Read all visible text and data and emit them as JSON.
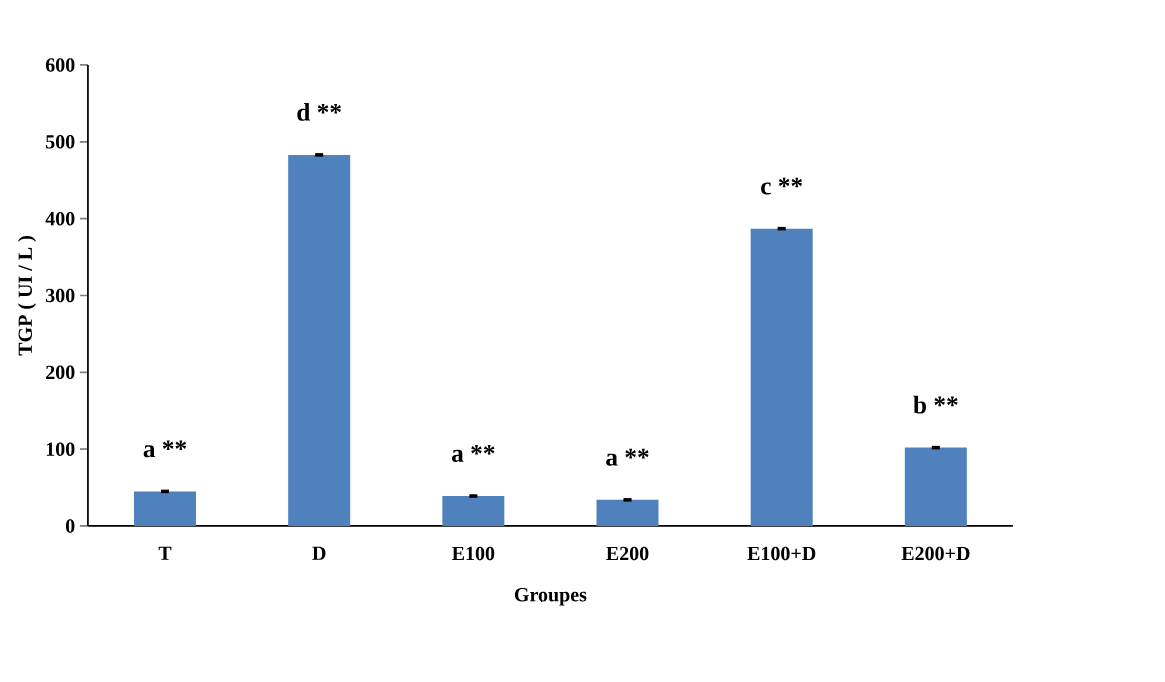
{
  "chart_data": {
    "type": "bar",
    "xlabel": "Groupes",
    "ylabel": "TGP ( UI / L )",
    "categories": [
      "T",
      "D",
      "E100",
      "E200",
      "E100+D",
      "E200+D"
    ],
    "values": [
      45,
      483,
      39,
      34,
      387,
      102
    ],
    "errors": [
      1,
      1,
      1,
      1,
      1,
      1
    ],
    "color": "#4f81bd",
    "ylim": [
      0,
      600
    ],
    "yticks": [
      0,
      100,
      200,
      300,
      400,
      500,
      600
    ],
    "annotations": [
      "a **",
      "d **",
      "a **",
      "a **",
      "c **",
      "b **"
    ]
  }
}
